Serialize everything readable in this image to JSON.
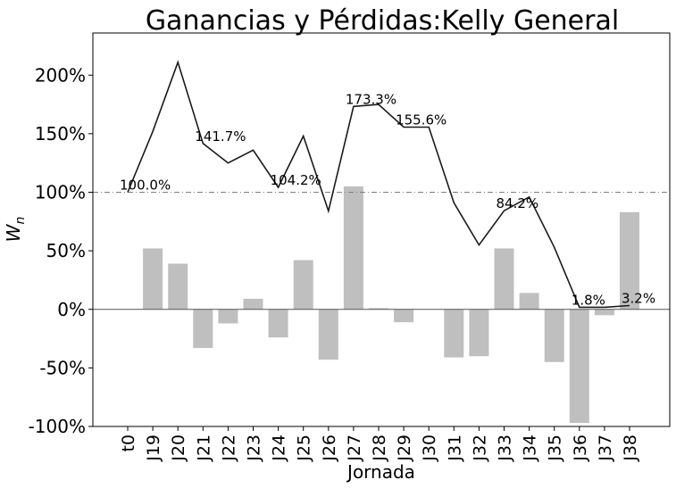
{
  "chart_data": {
    "type": "bar+line",
    "title": "Ganancias y Pérdidas:Kelly General",
    "xlabel": "Jornada",
    "ylabel": "W_n",
    "categories": [
      "t0",
      "J19",
      "J20",
      "J21",
      "J22",
      "J23",
      "J24",
      "J25",
      "J26",
      "J27",
      "J28",
      "J29",
      "J30",
      "J31",
      "J32",
      "J33",
      "J34",
      "J35",
      "J36",
      "J37",
      "J38"
    ],
    "ylim": [
      -100,
      236
    ],
    "yticks": [
      -100,
      -50,
      0,
      50,
      100,
      150,
      200
    ],
    "ytick_labels": [
      "-100%",
      "-50%",
      "0%",
      "50%",
      "100%",
      "150%",
      "200%"
    ],
    "bars": {
      "color": "#bfbfbf",
      "values": [
        null,
        52,
        39,
        -33,
        -12,
        9,
        -24,
        42,
        -43,
        105,
        1,
        -11,
        0,
        -41,
        -40,
        52,
        14,
        -45,
        -97,
        -5,
        83
      ]
    },
    "line": {
      "color": "#1a1a1a",
      "values": [
        100,
        152,
        211,
        141.7,
        125,
        136,
        104.2,
        148,
        84,
        173.3,
        175,
        155.6,
        155.6,
        91,
        55,
        84.2,
        96,
        53,
        1.8,
        1.8,
        3.2
      ]
    },
    "reference_line": {
      "y": 100,
      "style": "dash-dot",
      "color": "#808080"
    },
    "zero_line": {
      "y": 0,
      "color": "#555555"
    },
    "annotations": [
      {
        "index": 0,
        "text": "100.0%"
      },
      {
        "index": 3,
        "text": "141.7%"
      },
      {
        "index": 6,
        "text": "104.2%"
      },
      {
        "index": 9,
        "text": "173.3%"
      },
      {
        "index": 11,
        "text": "155.6%"
      },
      {
        "index": 15,
        "text": "84.2%"
      },
      {
        "index": 18,
        "text": "1.8%"
      },
      {
        "index": 20,
        "text": "3.2%"
      }
    ],
    "grid": false,
    "legend": "none"
  }
}
